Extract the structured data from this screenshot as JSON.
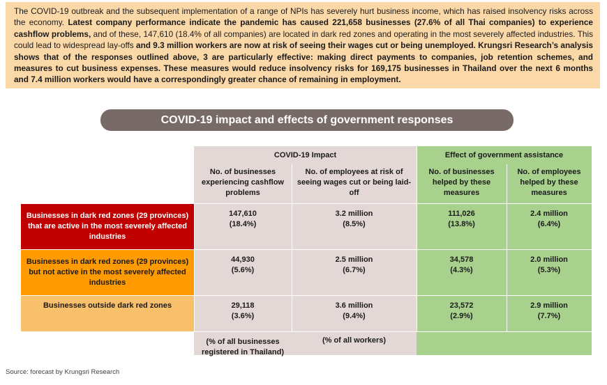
{
  "summary": {
    "s1": "The COVID-19 outbreak and the subsequent implementation of a range of NPIs has severely hurt business income, which has raised insolvency risks across the economy.",
    "s2": "Latest company performance indicate the pandemic has caused 221,658 businesses (27.6% of all Thai companies) to experience cashflow problems,",
    "s3": "and of these, 147,610 (18.4% of all companies) are located in dark red zones and operating in the most severely affected industries. This could lead to widespread lay-offs",
    "s4": "and 9.3 million workers are now at risk of seeing their wages cut or being unemployed. Krungsri Research’s analysis shows that of the responses outlined above, 3 are particularly effective: making direct payments to companies, job retention schemes, and measures to cut business expenses. These measures would reduce insolvency risks for 169,175 businesses in Thailand over the next 6 months and 7.4 million workers would have a correspondingly greater chance of remaining in employment."
  },
  "banner_title": "COVID-19 impact and effects of government responses",
  "table": {
    "group_headers": [
      "COVID-19 Impact",
      "Effect of government assistance"
    ],
    "column_headers": [
      "No. of businesses experiencing cashflow problems",
      "No. of employees at risk of seeing wages cut or being laid-off",
      "No. of businesses helped by these measures",
      "No. of employees helped by these measures"
    ],
    "rows": [
      {
        "label": "Businesses in dark red zones (29 provinces) that are active in the most severely affected industries",
        "cells": [
          {
            "value": "147,610",
            "pct": "(18.4%)"
          },
          {
            "value": "3.2 million",
            "pct": "(8.5%)"
          },
          {
            "value": "111,026",
            "pct": "(13.8%)"
          },
          {
            "value": "2.4 million",
            "pct": "(6.4%)"
          }
        ]
      },
      {
        "label": "Businesses in dark red zones (29 provinces) but not active in the most severely affected industries",
        "cells": [
          {
            "value": "44,930",
            "pct": "(5.6%)"
          },
          {
            "value": "2.5 million",
            "pct": "(6.7%)"
          },
          {
            "value": "34,578",
            "pct": "(4.3%)"
          },
          {
            "value": "2.0 million",
            "pct": "(5.3%)"
          }
        ]
      },
      {
        "label": "Businesses outside dark red zones",
        "cells": [
          {
            "value": "29,118",
            "pct": "(3.6%)"
          },
          {
            "value": "3.6 million",
            "pct": "(9.4%)"
          },
          {
            "value": "23,572",
            "pct": "(2.9%)"
          },
          {
            "value": "2.9 million",
            "pct": "(7.7%)"
          }
        ]
      }
    ],
    "footnotes": [
      "(% of all businesses registered in Thailand)",
      "(% of all workers)"
    ]
  },
  "source": "Source: forecast by Krungsri Research",
  "colors": {
    "summary_bg": "#fbd8a8",
    "banner_bg": "#786a67",
    "impact_bg": "#e3d8d6",
    "assistance_bg": "#a9d18e",
    "row1_bg": "#c00000",
    "row2_bg": "#ff9a00",
    "row3_bg": "#f9c06b"
  }
}
